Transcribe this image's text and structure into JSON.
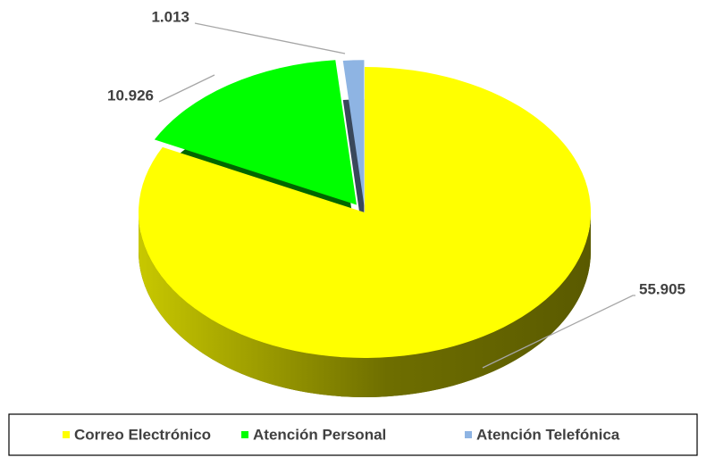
{
  "chart_data": {
    "type": "pie",
    "categories": [
      "Correo Electrónico",
      "Atención Personal",
      "Atención Telefónica"
    ],
    "values": [
      55905,
      10926,
      1013
    ],
    "value_labels": [
      "55.905",
      "10.926",
      "1.013"
    ],
    "colors": [
      "#ffff00",
      "#00ff00",
      "#8eb4e3"
    ],
    "legend": "bottom"
  }
}
